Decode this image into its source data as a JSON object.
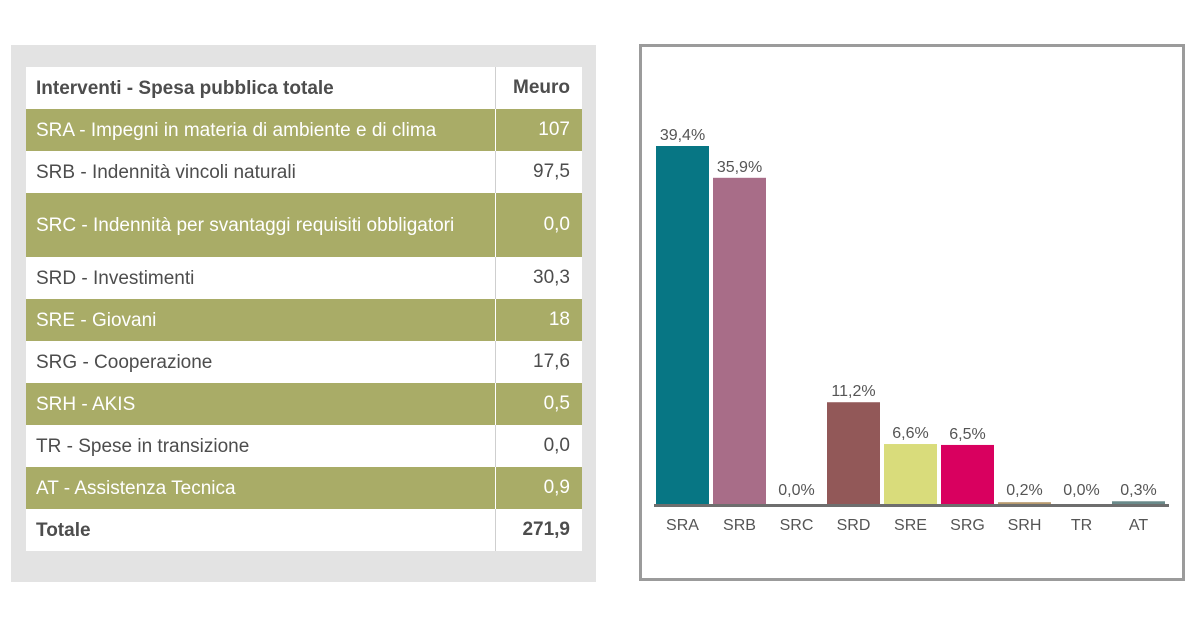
{
  "table": {
    "header": {
      "label": "Interventi - Spesa pubblica totale",
      "value": "Meuro"
    },
    "rows": [
      {
        "label": "SRA - Impegni in materia di ambiente e di clima",
        "value": "107"
      },
      {
        "label": "SRB - Indennità vincoli naturali",
        "value": "97,5"
      },
      {
        "label": "SRC - Indennità per svantaggi requisiti obbligatori",
        "value": "0,0"
      },
      {
        "label": "SRD - Investimenti",
        "value": "30,3"
      },
      {
        "label": "SRE - Giovani",
        "value": "18"
      },
      {
        "label": "SRG - Cooperazione",
        "value": "17,6"
      },
      {
        "label": "SRH - AKIS",
        "value": "0,5"
      },
      {
        "label": "TR - Spese in transizione",
        "value": "0,0"
      },
      {
        "label": "AT - Assistenza Tecnica",
        "value": "0,9"
      }
    ],
    "total": {
      "label": "Totale",
      "value": "271,9"
    },
    "colors": {
      "green_row": "#a9ac67",
      "white_row": "#ffffff",
      "panel": "#e3e3e3"
    }
  },
  "chart_data": {
    "type": "bar",
    "categories": [
      "SRA",
      "SRB",
      "SRC",
      "SRD",
      "SRE",
      "SRG",
      "SRH",
      "TR",
      "AT"
    ],
    "values": [
      39.4,
      35.9,
      0.0,
      11.2,
      6.6,
      6.5,
      0.2,
      0.0,
      0.3
    ],
    "labels": [
      "39,4%",
      "35,9%",
      "0,0%",
      "11,2%",
      "6,6%",
      "6,5%",
      "0,2%",
      "0,0%",
      "0,3%"
    ],
    "colors": [
      "#077684",
      "#a86d88",
      "#077684",
      "#925858",
      "#d9dc7b",
      "#d9005f",
      "#b89a6e",
      "#6b6b6b",
      "#6a8a8a"
    ],
    "title": "",
    "xlabel": "",
    "ylabel": "",
    "ylim": [
      0,
      39.4
    ],
    "grid": false,
    "legend": "none"
  }
}
